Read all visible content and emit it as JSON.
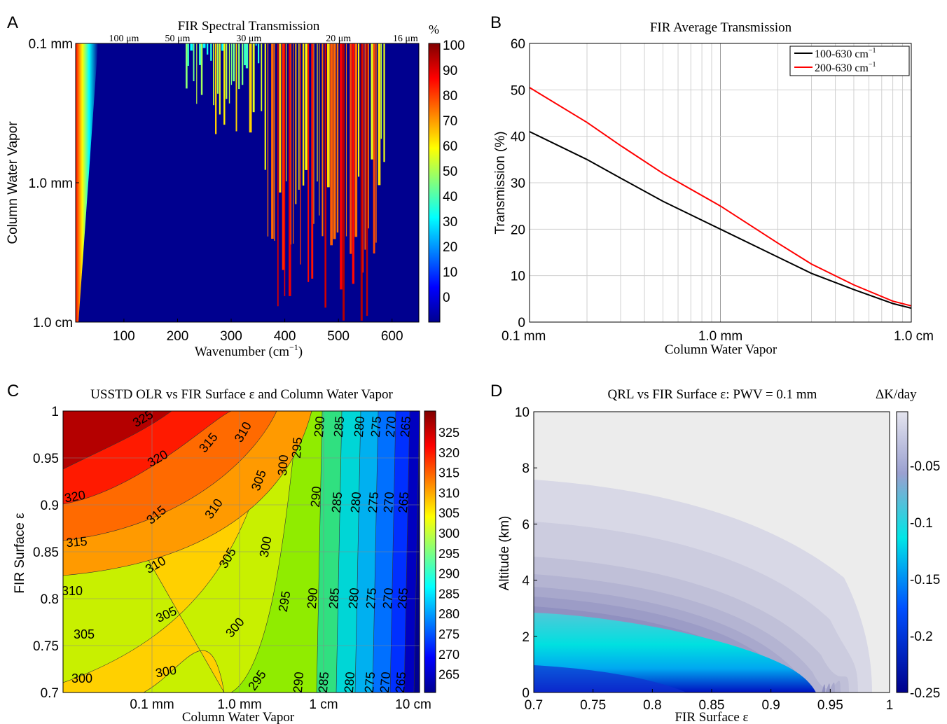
{
  "chart_data": [
    {
      "panel": "A",
      "type": "heatmap",
      "title": "FIR Spectral Transmission",
      "xlabel": "Wavenumber (cm⁻¹)",
      "ylabel": "Column Water Vapor",
      "x_ticks": [
        "100",
        "200",
        "300",
        "400",
        "500",
        "600"
      ],
      "x_tick_values": [
        100,
        200,
        300,
        400,
        500,
        600
      ],
      "xlim": [
        10,
        650
      ],
      "y_ticks": [
        "0.1 mm",
        "1.0 mm",
        "1.0 cm"
      ],
      "y_scale": "log",
      "top_ticks": [
        "100 μm",
        "50 μm",
        "30 μm",
        "20 μm",
        "16 μm"
      ],
      "top_tick_wavenumbers": [
        100,
        200,
        333,
        500,
        625
      ],
      "colorbar_unit": "%",
      "colorbar_ticks": [
        "100",
        "90",
        "80",
        "70",
        "60",
        "50",
        "40",
        "30",
        "20",
        "10",
        "0"
      ],
      "colorbar_range": [
        0,
        100
      ]
    },
    {
      "panel": "B",
      "type": "line",
      "title": "FIR Average Transmission",
      "xlabel": "Column Water Vapor",
      "ylabel": "Transmission (%)",
      "x_scale": "log",
      "x_ticks": [
        "0.1 mm",
        "1.0 mm",
        "1.0 cm"
      ],
      "x_tick_values_mm": [
        0.1,
        1.0,
        10.0
      ],
      "ylim": [
        0,
        60
      ],
      "y_ticks": [
        "0",
        "10",
        "20",
        "30",
        "40",
        "50",
        "60"
      ],
      "grid": true,
      "legend_position": "top-right",
      "series": [
        {
          "name": "100-630 cm⁻¹",
          "color": "#000000",
          "x_mm": [
            0.1,
            0.2,
            0.3,
            0.5,
            1.0,
            2.0,
            3.0,
            5.0,
            8.0,
            10.0
          ],
          "y": [
            41,
            35,
            31,
            26,
            20,
            14,
            10.5,
            7,
            4,
            3
          ]
        },
        {
          "name": "200-630 cm⁻¹",
          "color": "#ff0000",
          "x_mm": [
            0.1,
            0.2,
            0.3,
            0.5,
            1.0,
            2.0,
            3.0,
            5.0,
            8.0,
            10.0
          ],
          "y": [
            50.5,
            43,
            38,
            32,
            25,
            17,
            12.5,
            8,
            4.5,
            3.5
          ]
        }
      ]
    },
    {
      "panel": "C",
      "type": "heatmap",
      "title": "USSTD OLR vs FIR Surface ε and Column Water Vapor",
      "xlabel": "Column Water Vapor",
      "ylabel": "FIR Surface ε",
      "x_scale": "log",
      "x_ticks": [
        "0.1 mm",
        "1.0 mm",
        "1 cm",
        "10 cm"
      ],
      "y_ticks": [
        "1",
        "0.95",
        "0.9",
        "0.85",
        "0.8",
        "0.75",
        "0.7"
      ],
      "ylim": [
        0.7,
        1.0
      ],
      "colorbar_ticks": [
        "325",
        "320",
        "315",
        "310",
        "305",
        "300",
        "295",
        "290",
        "285",
        "280",
        "275",
        "270",
        "265"
      ],
      "contour_levels": [
        325,
        320,
        315,
        310,
        305,
        300,
        295,
        290,
        285,
        280,
        275,
        270,
        265
      ]
    },
    {
      "panel": "D",
      "type": "heatmap",
      "title": "QRL vs FIR Surface ε: PWV = 0.1 mm",
      "xlabel": "FIR Surface ε",
      "ylabel": "Altitude (km)",
      "x_ticks": [
        "0.7",
        "0.75",
        "0.8",
        "0.85",
        "0.9",
        "0.95",
        "1"
      ],
      "xlim": [
        0.7,
        1.0
      ],
      "y_ticks": [
        "0",
        "2",
        "4",
        "6",
        "8",
        "10"
      ],
      "ylim": [
        0,
        10
      ],
      "colorbar_unit": "ΔK/day",
      "colorbar_ticks": [
        "-0.05",
        "-0.1",
        "-0.15",
        "-0.2",
        "-0.25"
      ]
    }
  ],
  "labels": {
    "panel_a": "A",
    "panel_b": "B",
    "panel_c": "C",
    "panel_d": "D",
    "a_title": "FIR Spectral Transmission",
    "a_xlabel": "Wavenumber (cm",
    "a_xlabel_sup": "−1",
    "a_xlabel_end": ")",
    "a_ylabel": "Column Water Vapor",
    "a_cb_unit": "%",
    "b_title": "FIR Average Transmission",
    "b_xlabel": "Column Water Vapor",
    "b_ylabel": "Transmission (%)",
    "b_legend_1": "100-630 cm",
    "b_legend_2": "200-630 cm",
    "b_legend_sup": "−1",
    "c_title": "USSTD OLR vs FIR Surface ε and Column Water Vapor",
    "c_xlabel": "Column Water Vapor",
    "c_ylabel": "FIR Surface ε",
    "d_title": "QRL vs FIR Surface ε: PWV = 0.1 mm",
    "d_cb_unit": "ΔK/day",
    "d_xlabel": "FIR Surface ε",
    "d_ylabel": "Altitude (km)"
  }
}
